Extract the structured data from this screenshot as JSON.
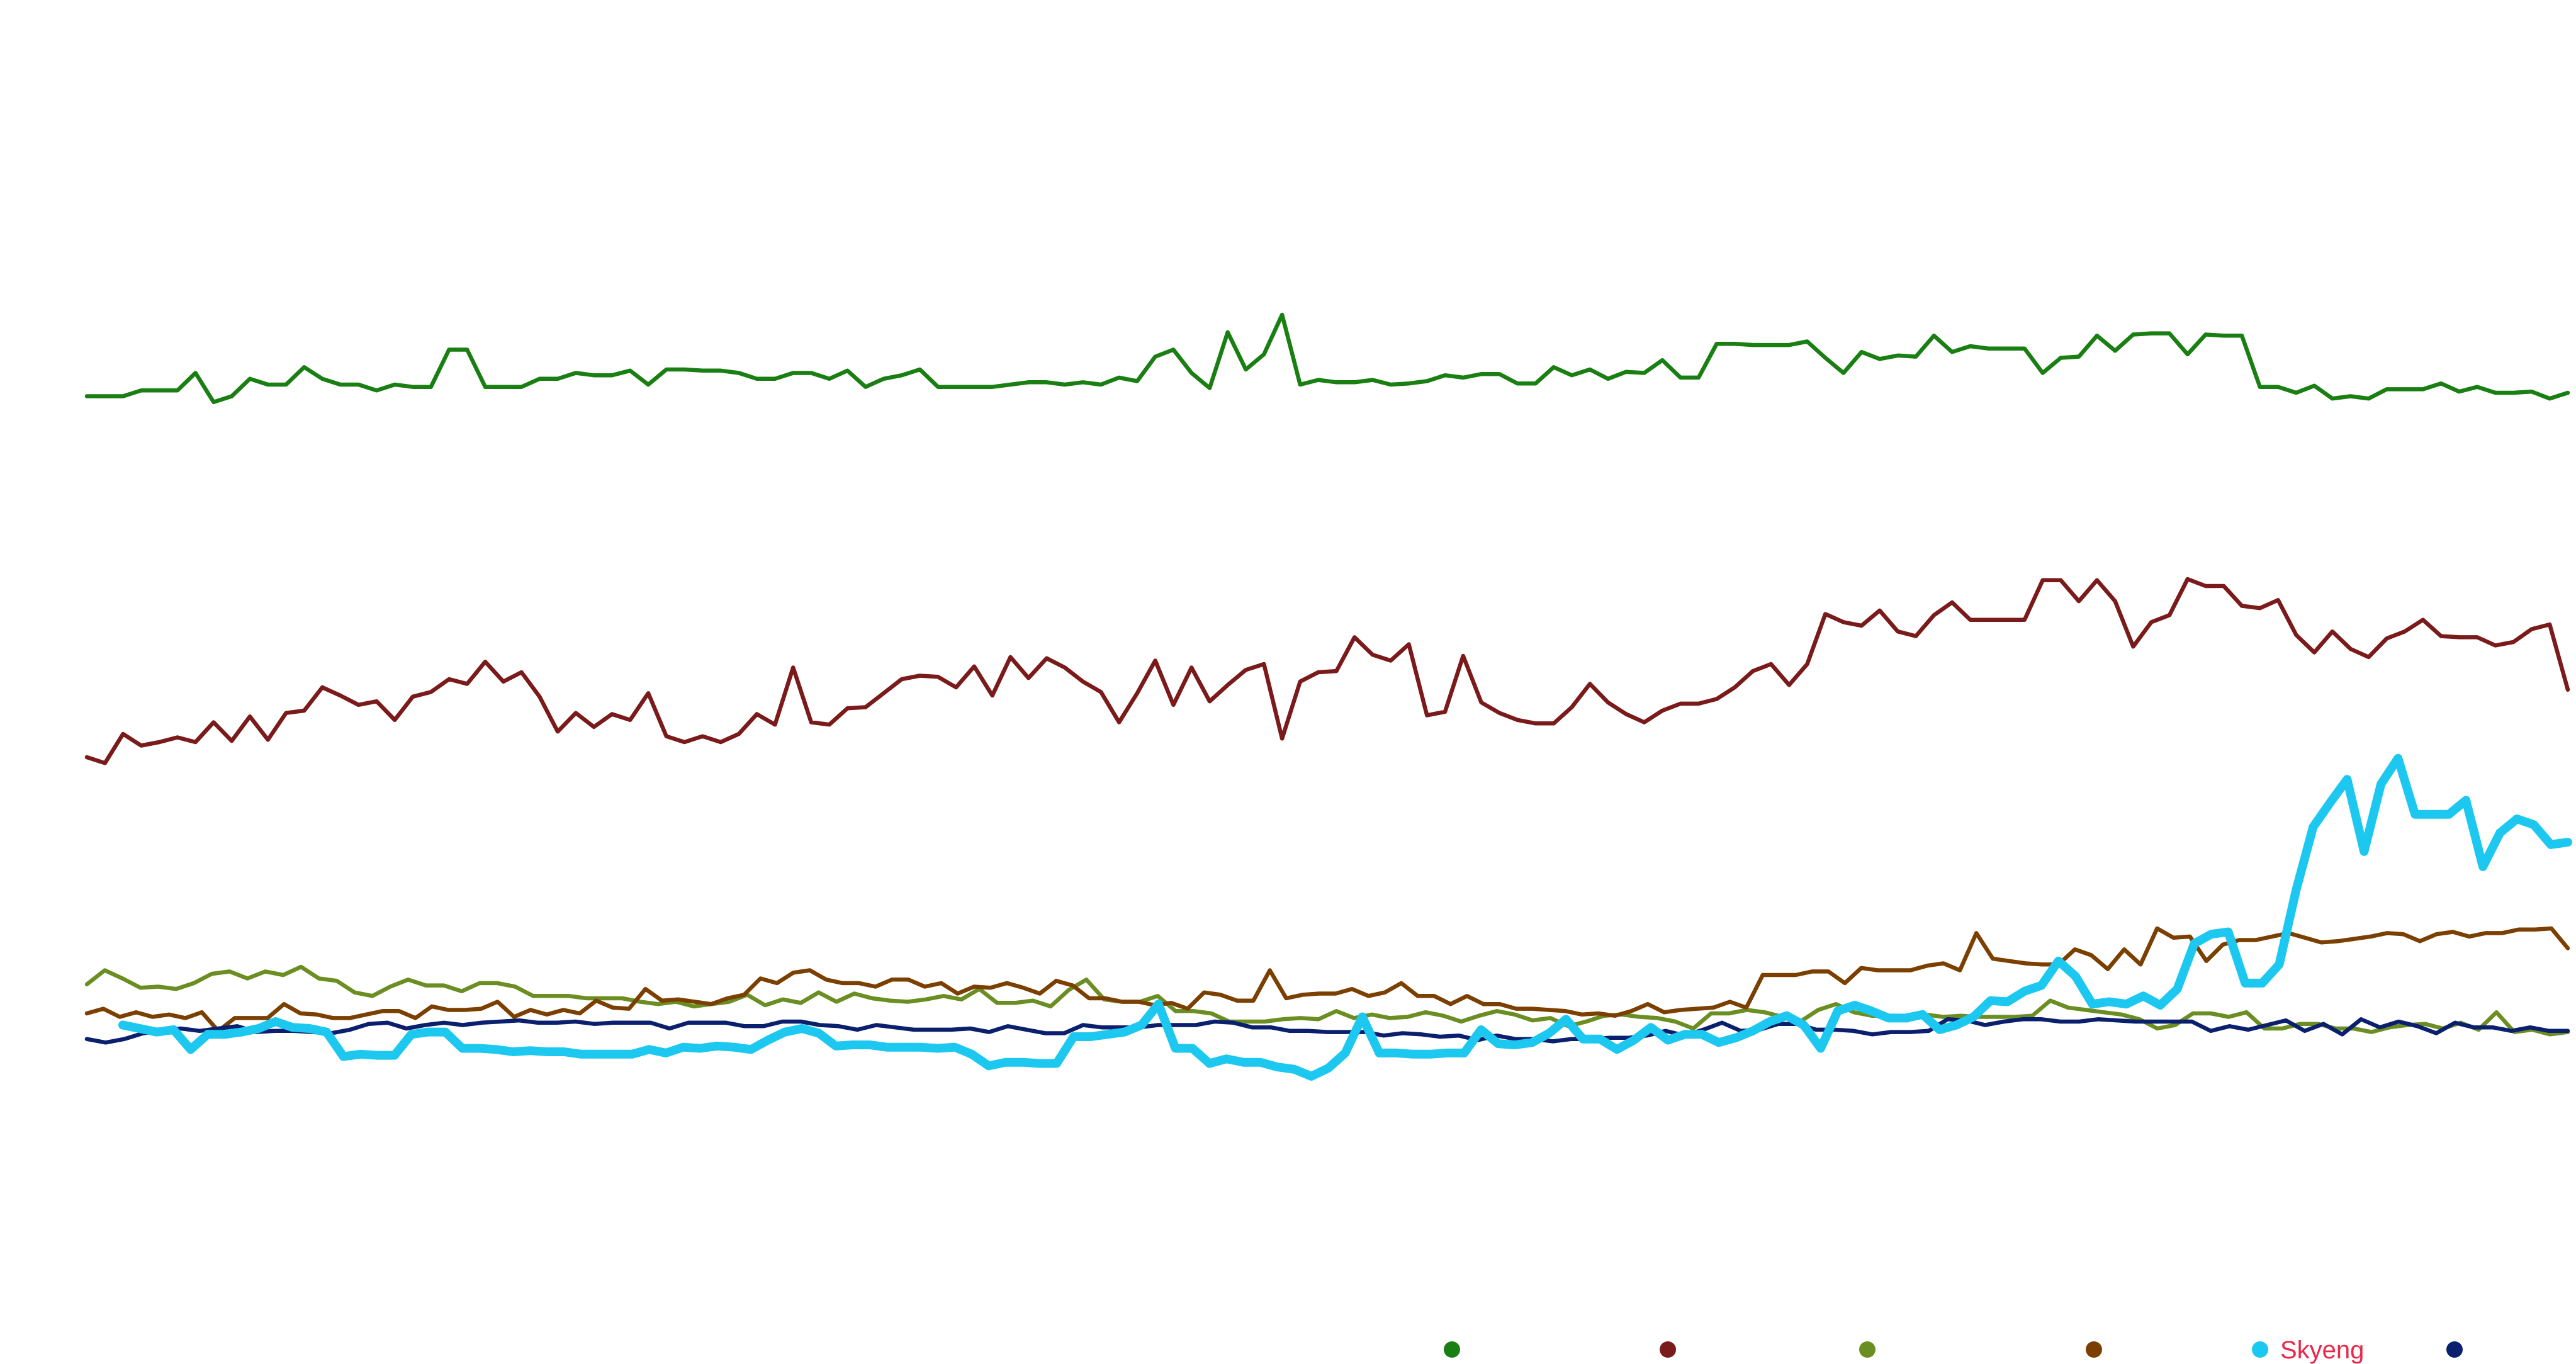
{
  "chart_data": {
    "type": "line",
    "title": "",
    "xlabel": "",
    "ylabel": "",
    "ylim": [
      0,
      100
    ],
    "grid": false,
    "legend_position": "bottom-right",
    "series": [
      {
        "name": "",
        "color": "#1a7f12",
        "highlight": false,
        "values": [
          73,
          73,
          73,
          73.5,
          73.5,
          73.5,
          75,
          72.5,
          73,
          74.5,
          74,
          74,
          75.5,
          74.5,
          74,
          74,
          73.5,
          74,
          73.8,
          73.8,
          77,
          77,
          73.8,
          73.8,
          73.8,
          74.5,
          74.5,
          75,
          74.8,
          74.8,
          75.2,
          74,
          75.3,
          75.3,
          75.2,
          75.2,
          75,
          74.5,
          74.5,
          75,
          75,
          74.5,
          75.2,
          73.8,
          74.5,
          74.8,
          75.3,
          73.8,
          73.8,
          73.8,
          73.8,
          74,
          74.2,
          74.2,
          74,
          74.2,
          74,
          74.6,
          74.3,
          76.4,
          77,
          75,
          73.7,
          78.5,
          75.3,
          76.6,
          80,
          74,
          74.4,
          74.2,
          74.2,
          74.4,
          74,
          74.1,
          74.3,
          74.8,
          74.6,
          74.9,
          74.9,
          74.1,
          74.1,
          75.5,
          74.8,
          75.3,
          74.5,
          75.1,
          75,
          76.1,
          74.6,
          74.6,
          77.5,
          77.5,
          77.4,
          77.4,
          77.4,
          77.7,
          76.3,
          75,
          76.8,
          76.2,
          76.5,
          76.4,
          78.2,
          76.8,
          77.3,
          77.1,
          77.1,
          77.1,
          75,
          76.3,
          76.4,
          78.2,
          76.9,
          78.3,
          78.4,
          78.4,
          76.6,
          78.3,
          78.2,
          78.2,
          73.8,
          73.8,
          73.3,
          73.9,
          72.8,
          73,
          72.8,
          73.6,
          73.6,
          73.6,
          74.1,
          73.4,
          73.8,
          73.3,
          73.3,
          73.4,
          72.8,
          73.3
        ]
      },
      {
        "name": "",
        "color": "#7a1a1a",
        "highlight": false,
        "values": [
          42,
          41.5,
          44,
          43,
          43.3,
          43.7,
          43.3,
          45,
          43.4,
          45.5,
          43.5,
          45.8,
          46,
          48,
          47.3,
          46.5,
          46.8,
          45.2,
          47.2,
          47.6,
          48.7,
          48.3,
          50.2,
          48.5,
          49.3,
          47.2,
          44.2,
          45.8,
          44.6,
          45.7,
          45.2,
          47.5,
          43.8,
          43.3,
          43.8,
          43.3,
          44,
          45.7,
          44.8,
          49.7,
          45,
          44.8,
          46.2,
          46.3,
          47.5,
          48.7,
          49,
          48.9,
          48,
          49.8,
          47.3,
          50.6,
          48.8,
          50.5,
          49.7,
          48.5,
          47.6,
          45,
          47.5,
          50.3,
          46.5,
          49.7,
          46.8,
          48.2,
          49.5,
          50,
          43.6,
          48.5,
          49.3,
          49.4,
          52.3,
          50.8,
          50.3,
          51.7,
          45.6,
          45.9,
          50.7,
          46.7,
          45.8,
          45.2,
          44.9,
          44.9,
          46.3,
          48.3,
          46.7,
          45.7,
          45,
          46,
          46.6,
          46.6,
          47,
          48,
          49.4,
          50,
          48.2,
          50,
          54.3,
          53.6,
          53.3,
          54.6,
          52.8,
          52.4,
          54.2,
          55.3,
          53.8,
          53.8,
          53.8,
          53.8,
          57.2,
          57.2,
          55.4,
          57.2,
          55.4,
          51.5,
          53.6,
          54.2,
          57.3,
          56.7,
          56.7,
          55,
          54.8,
          55.5,
          52.5,
          51,
          52.8,
          51.3,
          50.6,
          52.2,
          52.8,
          53.8,
          52.4,
          52.3,
          52.3,
          51.6,
          51.9,
          53,
          53.4,
          47.8
        ]
      },
      {
        "name": "",
        "color": "#6b8e23",
        "highlight": false,
        "values": [
          22.5,
          23.7,
          23,
          22.2,
          22.3,
          22.1,
          22.6,
          23.4,
          23.6,
          23,
          23.6,
          23.3,
          24,
          23,
          22.8,
          21.8,
          21.5,
          22.3,
          22.9,
          22.4,
          22.4,
          21.9,
          22.6,
          22.6,
          22.3,
          21.5,
          21.5,
          21.5,
          21.3,
          21.3,
          21.3,
          21,
          20.8,
          21,
          20.6,
          20.8,
          21,
          21.6,
          20.7,
          21.2,
          20.9,
          21.8,
          21,
          21.7,
          21.3,
          21.1,
          21,
          21.2,
          21.5,
          21.2,
          22.1,
          20.9,
          20.9,
          21.1,
          20.6,
          22,
          22.9,
          21.2,
          21,
          21,
          21.5,
          20.2,
          20.2,
          20,
          19.3,
          19.3,
          19.3,
          19.5,
          19.6,
          19.5,
          20.2,
          19.6,
          19.9,
          19.6,
          19.7,
          20.1,
          19.8,
          19.3,
          19.8,
          20.2,
          19.9,
          19.4,
          19.6,
          18.9,
          19.3,
          19.8,
          19.9,
          19.7,
          19.6,
          19.3,
          18.7,
          20,
          20,
          20.3,
          20.1,
          19.7,
          19.3,
          20.3,
          20.8,
          20.1,
          19.8,
          19.8,
          19.4,
          19.9,
          19.7,
          19.8,
          19.7,
          19.7,
          19.7,
          19.8,
          21.1,
          20.5,
          20.3,
          20.1,
          19.9,
          19.5,
          18.7,
          19,
          20,
          20,
          19.7,
          20.1,
          18.7,
          18.7,
          19.1,
          19.1,
          18.7,
          18.7,
          18.4,
          18.8,
          19,
          19.1,
          18.7,
          19.2,
          18.6,
          20.1,
          18.4,
          18.6,
          18.2,
          18.4
        ]
      },
      {
        "name": "",
        "color": "#7b3f00",
        "highlight": false,
        "values": [
          20,
          20.4,
          19.7,
          20.1,
          19.7,
          19.9,
          19.6,
          20.1,
          18.5,
          19.6,
          19.6,
          19.6,
          20.8,
          20,
          19.9,
          19.6,
          19.6,
          19.9,
          20.2,
          20.2,
          19.6,
          20.6,
          20.3,
          20.3,
          20.4,
          21,
          19.7,
          20.3,
          19.9,
          20.3,
          20,
          21.1,
          20.5,
          20.4,
          22.1,
          21.1,
          21.2,
          21,
          20.8,
          21.3,
          21.6,
          23,
          22.6,
          23.5,
          23.7,
          22.9,
          22.6,
          22.6,
          22.3,
          22.9,
          22.9,
          22.3,
          22.6,
          21.7,
          22.3,
          22.2,
          22.6,
          22.2,
          21.7,
          22.8,
          22.4,
          21.3,
          21.3,
          21,
          21,
          20.7,
          20.9,
          20.4,
          21.8,
          21.6,
          21.1,
          21.1,
          23.7,
          21.3,
          21.6,
          21.7,
          21.7,
          22.1,
          21.5,
          21.8,
          22.6,
          21.5,
          21.5,
          20.8,
          21.5,
          20.8,
          20.8,
          20.4,
          20.4,
          20.3,
          20.2,
          19.9,
          20,
          19.8,
          20.2,
          20.8,
          20.1,
          20.3,
          20.4,
          20.5,
          21,
          20.5,
          23.3,
          23.3,
          23.3,
          23.6,
          23.6,
          22.6,
          23.9,
          23.7,
          23.7,
          23.7,
          24.1,
          24.3,
          23.7,
          26.9,
          24.7,
          24.5,
          24.3,
          24.2,
          24.2,
          25.5,
          25,
          23.8,
          25.5,
          24.2,
          27.3,
          26.5,
          26.6,
          24.5,
          25.9,
          26.3,
          26.3,
          26.6,
          26.9,
          26.5,
          26.1,
          26.2,
          26.4,
          26.6,
          26.9,
          26.8,
          26.2,
          26.8,
          27,
          26.6,
          26.9,
          26.9,
          27.2,
          27.2,
          27.3,
          25.6
        ]
      },
      {
        "name": "Skyeng",
        "color": "#1cc8f0",
        "highlight": true,
        "values": [
          19,
          18.7,
          18.4,
          18.6,
          16.9,
          18.2,
          18.2,
          18.4,
          18.7,
          19.3,
          18.8,
          18.7,
          18.4,
          16.3,
          16.5,
          16.4,
          16.4,
          18.2,
          18.4,
          18.4,
          17,
          17,
          16.9,
          16.7,
          16.8,
          16.7,
          16.7,
          16.5,
          16.5,
          16.5,
          16.5,
          16.9,
          16.6,
          17.1,
          17,
          17.2,
          17.1,
          16.9,
          17.7,
          18.4,
          18.7,
          18.3,
          17.2,
          17.3,
          17.3,
          17.1,
          17.1,
          17.1,
          17,
          17.1,
          16.5,
          15.5,
          15.8,
          15.8,
          15.7,
          15.7,
          18,
          18,
          18.2,
          18.4,
          19,
          20.8,
          17,
          17,
          15.7,
          16.1,
          15.8,
          15.8,
          15.4,
          15.2,
          14.6,
          15.3,
          16.6,
          19.7,
          16.6,
          16.6,
          16.5,
          16.5,
          16.6,
          16.6,
          18.6,
          17.4,
          17.3,
          17.5,
          18.3,
          19.5,
          17.8,
          17.8,
          16.9,
          17.7,
          18.8,
          17.7,
          18.2,
          18.2,
          17.5,
          17.9,
          18.5,
          19.3,
          19.8,
          19,
          17,
          20.2,
          20.7,
          20.2,
          19.6,
          19.6,
          19.9,
          18.6,
          19,
          19.7,
          21.1,
          21,
          21.9,
          22.4,
          24.5,
          23.2,
          20.8,
          21,
          20.8,
          21.5,
          20.7,
          22.1,
          26,
          26.8,
          27,
          22.6,
          22.6,
          24.2,
          30.6,
          36,
          38.1,
          40.1,
          33.9,
          39.7,
          41.9,
          37.1,
          37.1,
          37.1,
          38.3,
          32.6,
          35.5,
          36.7,
          36.2,
          34.5,
          34.7
        ]
      },
      {
        "name": "",
        "color": "#0a1f6e",
        "highlight": false,
        "values": [
          17.8,
          17.5,
          17.8,
          18.3,
          18.5,
          18.7,
          18.5,
          18.7,
          18.9,
          18.4,
          18.5,
          18.5,
          18.4,
          18.3,
          18.6,
          19.1,
          19.2,
          18.7,
          19,
          19.2,
          19,
          19.2,
          19.3,
          19.4,
          19.2,
          19.2,
          19.3,
          19.1,
          19.2,
          19.2,
          19.2,
          18.7,
          19.2,
          19.2,
          19.2,
          18.9,
          18.9,
          19.3,
          19.3,
          19,
          18.9,
          18.6,
          19,
          18.8,
          18.6,
          18.6,
          18.6,
          18.7,
          18.4,
          18.9,
          18.6,
          18.3,
          18.3,
          19,
          18.8,
          18.8,
          18.8,
          19,
          19,
          19,
          19.3,
          19.2,
          18.8,
          18.8,
          18.5,
          18.5,
          18.4,
          18.4,
          18.4,
          18.1,
          18.3,
          18.2,
          18,
          18.1,
          17.7,
          18.1,
          17.8,
          17.8,
          17.6,
          17.8,
          17.8,
          17.9,
          17.9,
          18.1,
          18.5,
          18.1,
          18.6,
          19.2,
          18.5,
          18.6,
          19.1,
          19.1,
          18.6,
          18.6,
          18.5,
          18.2,
          18.4,
          18.4,
          18.5,
          19.5,
          19.4,
          19,
          19.3,
          19.5,
          19.5,
          19.3,
          19.3,
          19.5,
          19.4,
          19.3,
          19.3,
          19.3,
          19.3,
          18.5,
          18.9,
          18.6,
          19,
          19.4,
          18.5,
          19.1,
          18.2,
          19.5,
          18.8,
          19.3,
          18.9,
          18.3,
          19.2,
          18.8,
          18.8,
          18.5,
          18.8,
          18.5,
          18.5
        ]
      }
    ]
  }
}
